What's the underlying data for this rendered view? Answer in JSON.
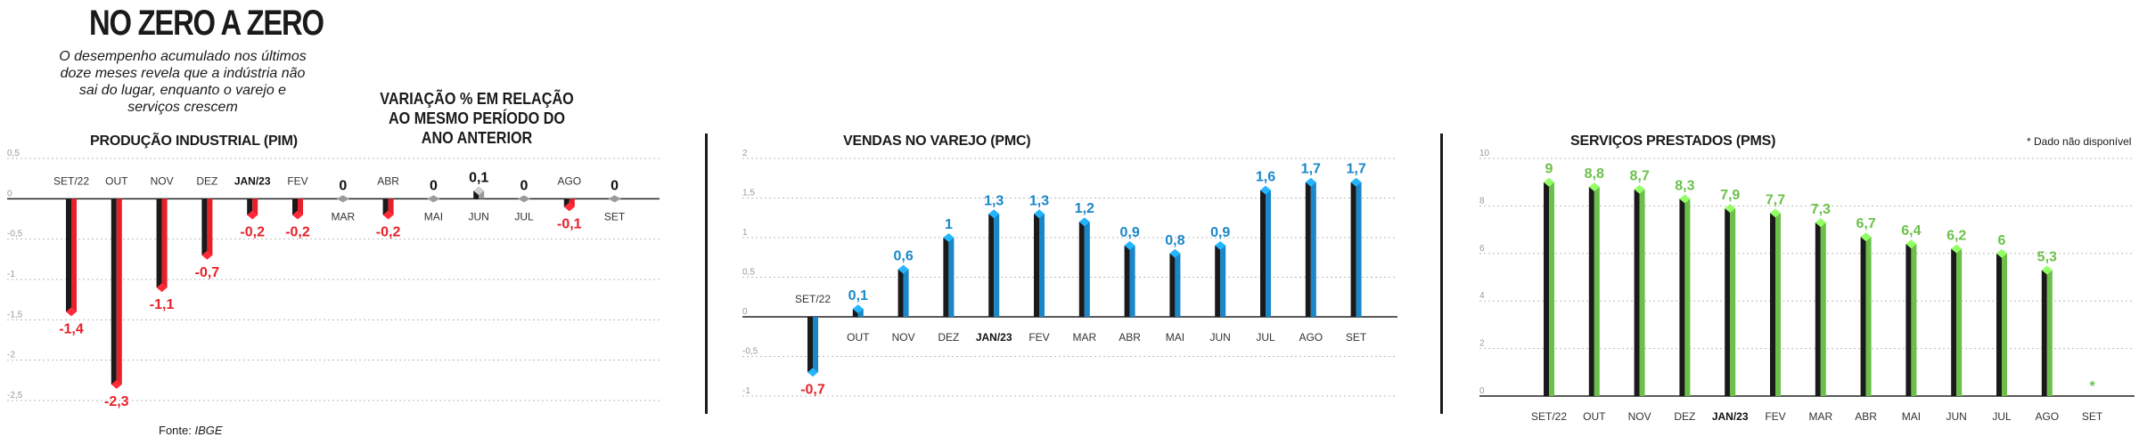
{
  "headline": "NO ZERO A ZERO",
  "intro": "O desempenho acumulado nos últimos doze meses revela que a indústria não sai do lugar, enquanto o varejo e serviços crescem",
  "variation_title": "VARIAÇÃO % EM RELAÇÃO AO MESMO PERÍODO DO ANO ANTERIOR",
  "source": {
    "label": "Fonte:",
    "value": "IBGE"
  },
  "note": "* Dado não disponível",
  "colors": {
    "pim": "#e8202a",
    "pmc": "#1a87c8",
    "pms": "#6cc04a",
    "dark": "#1a1a1a",
    "neutral": "#9a9a9a"
  },
  "chart_data": [
    {
      "type": "bar",
      "title": "PRODUÇÃO INDUSTRIAL (PIM)",
      "categories": [
        "SET/22",
        "OUT",
        "NOV",
        "DEZ",
        "JAN/23",
        "FEV",
        "MAR",
        "ABR",
        "MAI",
        "JUN",
        "JUL",
        "AGO",
        "SET"
      ],
      "values": [
        -1.4,
        -2.3,
        -1.1,
        -0.7,
        -0.2,
        -0.2,
        0,
        -0.2,
        0,
        0.1,
        0,
        -0.1,
        0
      ],
      "value_labels": [
        "-1,4",
        "-2,3",
        "-1,1",
        "-0,7",
        "-0,2",
        "-0,2",
        "0",
        "-0,2",
        "0",
        "0,1",
        "0",
        "-0,1",
        "0"
      ],
      "yticks": [
        "0,5",
        "0",
        "-0,5",
        "-1",
        "-1,5",
        "-2",
        "-2,5"
      ],
      "ylim": [
        -2.6,
        0.55
      ],
      "grid": true
    },
    {
      "type": "bar",
      "title": "VENDAS NO VAREJO (PMC)",
      "categories": [
        "SET/22",
        "OUT",
        "NOV",
        "DEZ",
        "JAN/23",
        "FEV",
        "MAR",
        "ABR",
        "MAI",
        "JUN",
        "JUL",
        "AGO",
        "SET"
      ],
      "values": [
        -0.7,
        0.1,
        0.6,
        1,
        1.3,
        1.3,
        1.2,
        0.9,
        0.8,
        0.9,
        1.6,
        1.7,
        1.7
      ],
      "value_labels": [
        "-0,7",
        "0,1",
        "0,6",
        "1",
        "1,3",
        "1,3",
        "1,2",
        "0,9",
        "0,8",
        "0,9",
        "1,6",
        "1,7",
        "1,7"
      ],
      "yticks": [
        "2",
        "1,5",
        "1",
        "0,5",
        "0",
        "-0,5",
        "-1"
      ],
      "ylim": [
        -1.05,
        2.05
      ],
      "grid": true
    },
    {
      "type": "bar",
      "title": "SERVIÇOS PRESTADOS (PMS)",
      "categories": [
        "SET/22",
        "OUT",
        "NOV",
        "DEZ",
        "JAN/23",
        "FEV",
        "MAR",
        "ABR",
        "MAI",
        "JUN",
        "JUL",
        "AGO",
        "SET"
      ],
      "values": [
        9,
        8.8,
        8.7,
        8.3,
        7.9,
        7.7,
        7.3,
        6.7,
        6.4,
        6.2,
        6,
        5.3,
        null
      ],
      "value_labels": [
        "9",
        "8,8",
        "8,7",
        "8,3",
        "7,9",
        "7,7",
        "7,3",
        "6,7",
        "6,4",
        "6,2",
        "6",
        "5,3",
        "*"
      ],
      "yticks": [
        "10",
        "8",
        "6",
        "4",
        "2",
        "0"
      ],
      "ylim": [
        0,
        10
      ],
      "grid": true
    }
  ]
}
